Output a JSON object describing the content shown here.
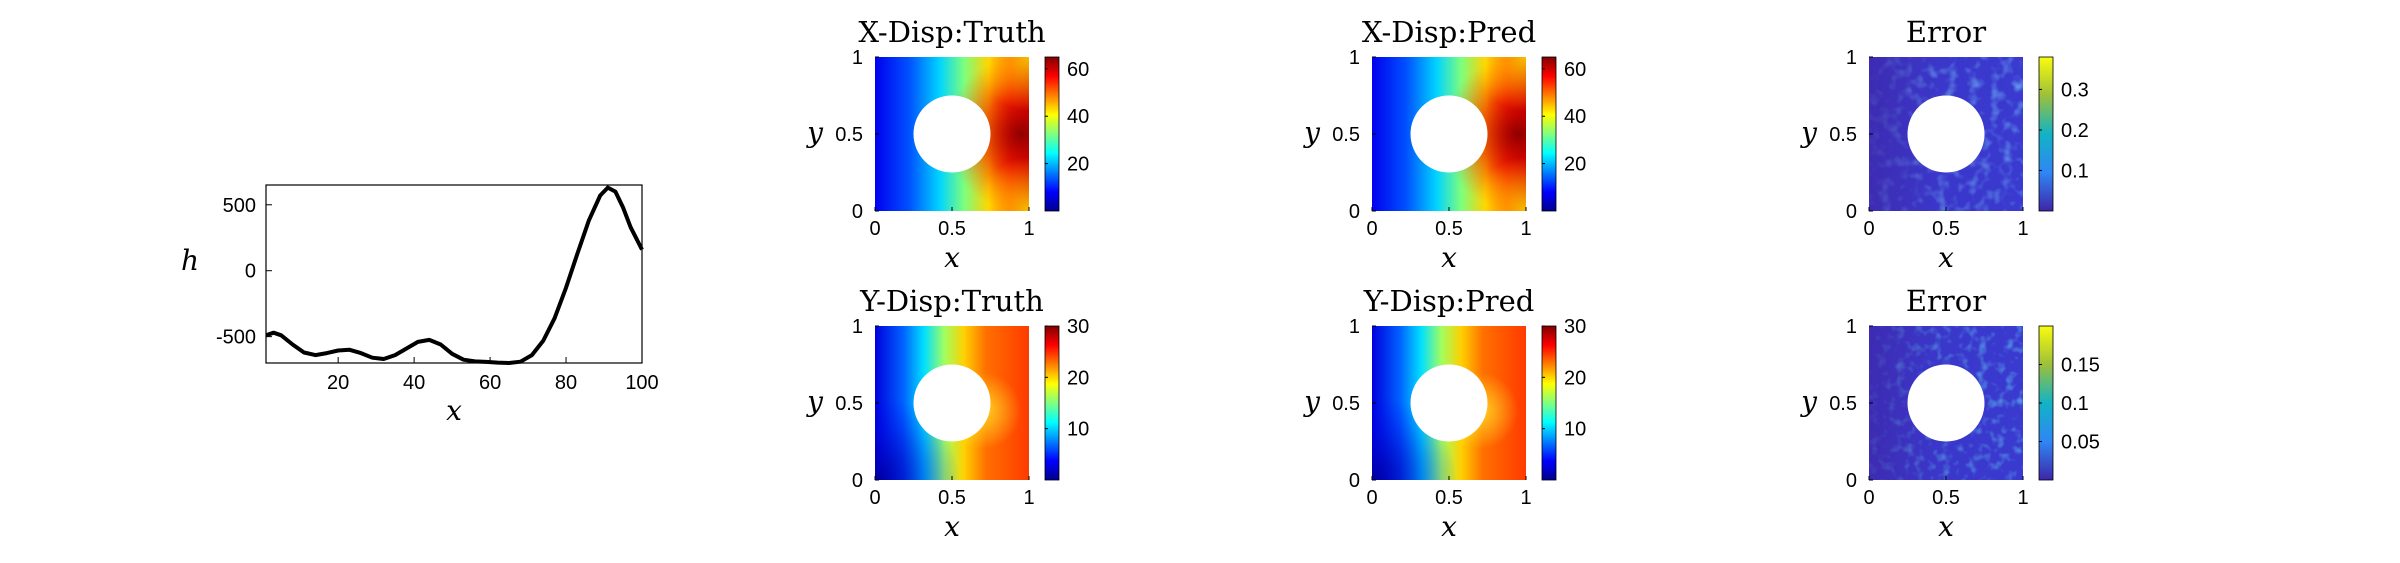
{
  "colors": {
    "axis": "#000000",
    "background": "#ffffff",
    "hole": "#ffffff",
    "line": "#000000"
  },
  "chart_data": [
    {
      "type": "line",
      "title": "",
      "xlabel": "x",
      "ylabel": "h",
      "xlim": [
        1,
        100
      ],
      "ylim": [
        -700,
        650
      ],
      "xticks": [
        "20",
        "40",
        "60",
        "80",
        "100"
      ],
      "yticks": [
        "500",
        "0",
        "-500"
      ],
      "grid": false,
      "series": [
        {
          "x": [
            1,
            3,
            5,
            8,
            11,
            14,
            17,
            20,
            23,
            26,
            29,
            32,
            35,
            38,
            41,
            44,
            47,
            50,
            53,
            56,
            59,
            62,
            65,
            68,
            71,
            74,
            77,
            80,
            83,
            86,
            89,
            91,
            93,
            95,
            97,
            100
          ],
          "y": [
            -490,
            -470,
            -490,
            -560,
            -620,
            -640,
            -625,
            -605,
            -600,
            -625,
            -660,
            -670,
            -640,
            -590,
            -540,
            -525,
            -560,
            -630,
            -675,
            -688,
            -692,
            -697,
            -700,
            -690,
            -640,
            -530,
            -360,
            -130,
            130,
            380,
            570,
            630,
            600,
            480,
            330,
            160
          ]
        }
      ]
    },
    {
      "type": "heatmap",
      "title": "X-Disp:Truth",
      "xlabel": "x",
      "ylabel": "y",
      "xlim": [
        0,
        1
      ],
      "ylim": [
        0,
        1
      ],
      "xticks": [
        "0",
        "0.5",
        "1"
      ],
      "yticks": [
        "0",
        "0.5",
        "1"
      ],
      "colormap": "jet",
      "clim": [
        0,
        65
      ],
      "colorbar_ticks": [
        "20",
        "40",
        "60"
      ],
      "hole": {
        "center": [
          0.5,
          0.5
        ],
        "radius": 0.25
      }
    },
    {
      "type": "heatmap",
      "title": "X-Disp:Pred",
      "xlabel": "x",
      "ylabel": "y",
      "xlim": [
        0,
        1
      ],
      "ylim": [
        0,
        1
      ],
      "xticks": [
        "0",
        "0.5",
        "1"
      ],
      "yticks": [
        "0",
        "0.5",
        "1"
      ],
      "colormap": "jet",
      "clim": [
        0,
        65
      ],
      "colorbar_ticks": [
        "20",
        "40",
        "60"
      ],
      "hole": {
        "center": [
          0.5,
          0.5
        ],
        "radius": 0.25
      }
    },
    {
      "type": "heatmap",
      "title": "Error",
      "xlabel": "x",
      "ylabel": "y",
      "xlim": [
        0,
        1
      ],
      "ylim": [
        0,
        1
      ],
      "xticks": [
        "0",
        "0.5",
        "1"
      ],
      "yticks": [
        "0",
        "0.5",
        "1"
      ],
      "colormap": "parula",
      "clim": [
        0,
        0.38
      ],
      "colorbar_ticks": [
        "0.1",
        "0.2",
        "0.3"
      ],
      "hole": {
        "center": [
          0.5,
          0.5
        ],
        "radius": 0.25
      }
    },
    {
      "type": "heatmap",
      "title": "Y-Disp:Truth",
      "xlabel": "x",
      "ylabel": "y",
      "xlim": [
        0,
        1
      ],
      "ylim": [
        0,
        1
      ],
      "xticks": [
        "0",
        "0.5",
        "1"
      ],
      "yticks": [
        "0",
        "0.5",
        "1"
      ],
      "colormap": "jet",
      "clim": [
        0,
        30
      ],
      "colorbar_ticks": [
        "10",
        "20",
        "30"
      ],
      "hole": {
        "center": [
          0.5,
          0.5
        ],
        "radius": 0.25
      }
    },
    {
      "type": "heatmap",
      "title": "Y-Disp:Pred",
      "xlabel": "x",
      "ylabel": "y",
      "xlim": [
        0,
        1
      ],
      "ylim": [
        0,
        1
      ],
      "xticks": [
        "0",
        "0.5",
        "1"
      ],
      "yticks": [
        "0",
        "0.5",
        "1"
      ],
      "colormap": "jet",
      "clim": [
        0,
        30
      ],
      "colorbar_ticks": [
        "10",
        "20",
        "30"
      ],
      "hole": {
        "center": [
          0.5,
          0.5
        ],
        "radius": 0.25
      }
    },
    {
      "type": "heatmap",
      "title": "Error",
      "xlabel": "x",
      "ylabel": "y",
      "xlim": [
        0,
        1
      ],
      "ylim": [
        0,
        1
      ],
      "xticks": [
        "0",
        "0.5",
        "1"
      ],
      "yticks": [
        "0",
        "0.5",
        "1"
      ],
      "colormap": "parula",
      "clim": [
        0,
        0.2
      ],
      "colorbar_ticks": [
        "0.05",
        "0.1",
        "0.15"
      ],
      "hole": {
        "center": [
          0.5,
          0.5
        ],
        "radius": 0.25
      }
    }
  ]
}
